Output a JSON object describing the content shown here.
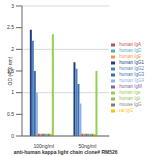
{
  "chart_data": {
    "type": "bar",
    "x_label": "anti-human kappa light chain clone# RM526",
    "y_label": "OD (450 nm)",
    "categories": [
      "100ng/ml",
      "50ng/ml"
    ],
    "ylim": [
      0,
      3
    ],
    "yticks": [
      0,
      0.5,
      1,
      1.5,
      2,
      2.5,
      3
    ],
    "grid": true,
    "legend": "right",
    "series": [
      {
        "name": "human IgG1",
        "color": "#1f3f7a",
        "values": [
          2.45,
          1.7
        ]
      },
      {
        "name": "human IgG2",
        "color": "#4f81bd",
        "values": [
          2.2,
          1.55
        ]
      },
      {
        "name": "human IgG3",
        "color": "#3a6fb0",
        "values": [
          1.5,
          1.2
        ]
      },
      {
        "name": "human IgG4",
        "color": "#8db3e2",
        "values": [
          1.0,
          0.75
        ]
      },
      {
        "name": "human IgA",
        "color": "#c0504d",
        "values": [
          0.05,
          0.05
        ]
      },
      {
        "name": "human IgE",
        "color": "#f79646",
        "values": [
          0.05,
          0.05
        ]
      },
      {
        "name": "human IgM",
        "color": "#8064a2",
        "values": [
          0.05,
          0.05
        ]
      },
      {
        "name": "human IgD",
        "color": "#4bacc6",
        "values": [
          0.05,
          0.05
        ]
      },
      {
        "name": "human Igλ",
        "color": "#9bbb59",
        "values": [
          0.05,
          0.05
        ]
      },
      {
        "name": "mouse IgG",
        "color": "#7f7f7f",
        "values": [
          0.05,
          0.05
        ]
      },
      {
        "name": "rat IgG",
        "color": "#ffc000",
        "values": [
          0.05,
          0.05
        ]
      },
      {
        "name": "human Igκ",
        "color": "#92d050",
        "values": [
          2.35,
          1.5
        ]
      }
    ]
  }
}
